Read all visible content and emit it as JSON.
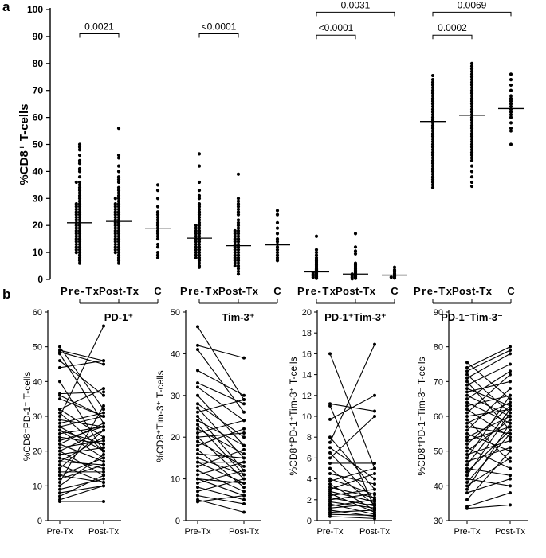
{
  "panel_labels": {
    "a": "a",
    "b": "b"
  },
  "chart_data": [
    {
      "panel": "a",
      "type": "scatter",
      "ylabel": "%CD8⁺ T-cells",
      "ylim": [
        0,
        100
      ],
      "yticks": [
        0,
        10,
        20,
        30,
        40,
        50,
        60,
        70,
        80,
        90,
        100
      ],
      "categories": [
        "Pre-Tx",
        "Post-Tx",
        "C"
      ],
      "groups": [
        {
          "label": "PD-1⁺",
          "series": [
            {
              "name": "Pre-Tx",
              "median": 21,
              "values": [
                50,
                49,
                48,
                46,
                44,
                43,
                41,
                40,
                38,
                36,
                36,
                35,
                34,
                33,
                32,
                31,
                30,
                29,
                28,
                28,
                27,
                27,
                26,
                26,
                25,
                25,
                24,
                24,
                23,
                23,
                22,
                22,
                21,
                21,
                20,
                20,
                19,
                19,
                18,
                18,
                17,
                17,
                16,
                16,
                15,
                15,
                14,
                14,
                13,
                13,
                12,
                12,
                11,
                11,
                10,
                10,
                9,
                8,
                7,
                6
              ]
            },
            {
              "name": "Post-Tx",
              "median": 21.5,
              "values": [
                56,
                46,
                45,
                42,
                40,
                38,
                37,
                36,
                34,
                33,
                32,
                31,
                30,
                30,
                29,
                28,
                28,
                27,
                27,
                26,
                26,
                25,
                25,
                24,
                24,
                23,
                23,
                22,
                22,
                21,
                21,
                20,
                20,
                19,
                19,
                18,
                18,
                17,
                17,
                16,
                16,
                15,
                15,
                14,
                14,
                13,
                13,
                12,
                12,
                11,
                11,
                10,
                10,
                9,
                8,
                7,
                6
              ]
            },
            {
              "name": "C",
              "median": 19,
              "values": [
                35,
                33,
                30,
                27,
                25,
                24,
                23,
                22,
                21,
                20,
                19,
                18,
                17,
                16,
                15,
                13,
                12,
                10,
                9,
                8
              ]
            }
          ],
          "comparison": {
            "label": "0.0021",
            "from": "Pre-Tx",
            "to": "Post-Tx"
          }
        },
        {
          "label": "Tim-3⁺",
          "series": [
            {
              "name": "Pre-Tx",
              "median": 15.3,
              "values": [
                46.5,
                42,
                36,
                33,
                31,
                30,
                28,
                27,
                26,
                25,
                24,
                23,
                22,
                21,
                20,
                20,
                19,
                19,
                18,
                18,
                17,
                17,
                16,
                16,
                15,
                15,
                14,
                14,
                13,
                13,
                12,
                12,
                11,
                11,
                10,
                10,
                9,
                9,
                8,
                8,
                7,
                6,
                5,
                4.5
              ]
            },
            {
              "name": "Post-Tx",
              "median": 12.5,
              "values": [
                39,
                30,
                29,
                28,
                27,
                26,
                25,
                24,
                22,
                21,
                20,
                19,
                18,
                18,
                17,
                17,
                16,
                16,
                15,
                15,
                14,
                14,
                13,
                13,
                12,
                12,
                11,
                11,
                10,
                10,
                9,
                9,
                8,
                8,
                7,
                7,
                6,
                6,
                5,
                5,
                4,
                3,
                2
              ]
            },
            {
              "name": "C",
              "median": 12.8,
              "values": [
                25.5,
                24,
                21,
                19,
                17,
                15,
                14,
                13,
                12,
                11,
                10,
                9,
                8,
                7
              ]
            }
          ],
          "comparison": {
            "label": "<0.0001",
            "from": "Pre-Tx",
            "to": "Post-Tx"
          }
        },
        {
          "label": "PD-1⁺Tim-3⁺",
          "series": [
            {
              "name": "Pre-Tx",
              "median": 2.8,
              "values": [
                16,
                11,
                10,
                9,
                8,
                7.5,
                7,
                6.5,
                6,
                5.5,
                5,
                4.5,
                4,
                3.8,
                3.5,
                3.2,
                3,
                2.8,
                2.6,
                2.4,
                2.2,
                2,
                1.8,
                1.6,
                1.4,
                1.2,
                1,
                0.8,
                0.6,
                0.4
              ]
            },
            {
              "name": "Post-Tx",
              "median": 2,
              "values": [
                17,
                12,
                10.5,
                9.5,
                6,
                5.5,
                5,
                4.5,
                4,
                3.5,
                3,
                2.8,
                2.5,
                2.2,
                2,
                1.8,
                1.6,
                1.4,
                1.2,
                1,
                0.8,
                0.6,
                0.4,
                0.2
              ]
            },
            {
              "name": "C",
              "median": 1.6,
              "values": [
                4.5,
                3.5,
                2.8,
                2.2,
                1.8,
                1.5,
                1.2,
                1,
                0.8,
                0.5
              ]
            }
          ],
          "comparison": {
            "label": "<0.0001",
            "from": "Pre-Tx",
            "to": "Post-Tx"
          },
          "comparison_outer": {
            "label": "0.0031",
            "from": "Pre-Tx",
            "to": "C"
          }
        },
        {
          "label": "PD-1⁻Tim-3⁻",
          "series": [
            {
              "name": "Pre-Tx",
              "median": 58.5,
              "values": [
                75.5,
                74,
                73,
                72,
                71,
                70,
                69,
                68,
                67,
                66,
                65,
                64,
                63,
                62,
                61,
                60,
                59,
                58,
                57,
                56,
                55,
                54,
                53,
                52,
                51,
                50,
                49,
                48,
                47,
                46,
                45,
                44,
                43,
                42,
                41,
                40,
                39,
                38,
                37,
                36,
                35,
                34
              ]
            },
            {
              "name": "Post-Tx",
              "median": 60.8,
              "values": [
                80,
                79,
                78,
                77,
                76,
                75,
                74,
                73,
                72,
                71,
                70,
                69,
                68,
                67,
                66,
                65,
                64,
                63,
                62,
                61,
                60,
                59,
                58,
                57,
                56,
                55,
                54,
                53,
                52,
                51,
                50,
                49,
                48,
                47,
                46,
                45,
                44,
                42,
                40,
                38,
                36,
                34.5
              ]
            },
            {
              "name": "C",
              "median": 63.3,
              "values": [
                76,
                74,
                72,
                70,
                68,
                67,
                66,
                65,
                64,
                63,
                62,
                61,
                60,
                58,
                56,
                55,
                50
              ]
            }
          ],
          "comparison": {
            "label": "0.0002",
            "from": "Pre-Tx",
            "to": "Post-Tx"
          },
          "comparison_outer": {
            "label": "0.0069",
            "from": "Pre-Tx",
            "to": "C"
          }
        }
      ]
    },
    {
      "panel": "b",
      "type": "line",
      "ylabel": "%CD8⁺PD-1⁺ T-cells",
      "categories": [
        "Pre-Tx",
        "Post-Tx"
      ],
      "ylim": [
        0,
        60
      ],
      "yticks": [
        0,
        10,
        20,
        30,
        40,
        50,
        60
      ],
      "pairs": [
        [
          50,
          32
        ],
        [
          49,
          46
        ],
        [
          48.5,
          45
        ],
        [
          48,
          28
        ],
        [
          46,
          36
        ],
        [
          44,
          46
        ],
        [
          40,
          20
        ],
        [
          36.5,
          37
        ],
        [
          36,
          30
        ],
        [
          35,
          30
        ],
        [
          32,
          24
        ],
        [
          31,
          20
        ],
        [
          30,
          56
        ],
        [
          29,
          27
        ],
        [
          28,
          31
        ],
        [
          27,
          30
        ],
        [
          26,
          18
        ],
        [
          25,
          27
        ],
        [
          24,
          22
        ],
        [
          23,
          27
        ],
        [
          22,
          17
        ],
        [
          21,
          23
        ],
        [
          20,
          26
        ],
        [
          20,
          13
        ],
        [
          19,
          21
        ],
        [
          18,
          15
        ],
        [
          17,
          16
        ],
        [
          16,
          11
        ],
        [
          15,
          26
        ],
        [
          14,
          14
        ],
        [
          13,
          18
        ],
        [
          12,
          16
        ],
        [
          11,
          33
        ],
        [
          10,
          19
        ],
        [
          9,
          12
        ],
        [
          8,
          10
        ],
        [
          7,
          13
        ],
        [
          6,
          10
        ],
        [
          5.5,
          5.5
        ],
        [
          27,
          20
        ],
        [
          22,
          28
        ],
        [
          17,
          24
        ],
        [
          13,
          11
        ],
        [
          32,
          38
        ],
        [
          26,
          22
        ]
      ]
    },
    {
      "panel": "b",
      "type": "line",
      "ylabel": "%CD8⁺Tim-3⁺ T-cells",
      "categories": [
        "Pre-Tx",
        "Post-Tx"
      ],
      "ylim": [
        0,
        50
      ],
      "yticks": [
        0,
        10,
        20,
        30,
        40,
        50
      ],
      "pairs": [
        [
          46.5,
          29
        ],
        [
          42,
          39
        ],
        [
          41,
          26
        ],
        [
          36,
          30
        ],
        [
          33,
          28
        ],
        [
          32,
          24
        ],
        [
          30,
          18
        ],
        [
          28,
          20
        ],
        [
          27,
          15
        ],
        [
          26,
          29
        ],
        [
          25,
          12
        ],
        [
          24,
          18
        ],
        [
          23,
          11
        ],
        [
          22,
          16
        ],
        [
          21,
          24
        ],
        [
          20,
          10
        ],
        [
          19,
          13
        ],
        [
          18,
          22
        ],
        [
          17,
          8
        ],
        [
          16,
          15
        ],
        [
          15,
          11
        ],
        [
          14,
          9
        ],
        [
          13,
          17
        ],
        [
          12,
          7
        ],
        [
          11,
          14
        ],
        [
          10,
          6
        ],
        [
          9,
          12
        ],
        [
          8,
          5
        ],
        [
          7,
          10
        ],
        [
          6,
          4
        ],
        [
          5,
          2
        ],
        [
          4.5,
          6
        ],
        [
          20,
          21
        ],
        [
          14,
          14
        ],
        [
          10,
          9
        ]
      ]
    },
    {
      "panel": "b",
      "type": "line",
      "ylabel": "%CD8⁺PD-1⁺Tim-3⁺ T-cells",
      "categories": [
        "Pre-Tx",
        "Post-Tx"
      ],
      "ylim": [
        0,
        20
      ],
      "yticks": [
        0,
        2,
        4,
        6,
        8,
        10,
        12,
        14,
        16,
        18,
        20
      ],
      "pairs": [
        [
          16,
          5
        ],
        [
          11.2,
          10.5
        ],
        [
          11,
          1.2
        ],
        [
          9.7,
          12
        ],
        [
          8,
          3
        ],
        [
          7.5,
          16.9
        ],
        [
          7,
          4
        ],
        [
          6.5,
          2
        ],
        [
          6,
          10
        ],
        [
          5.5,
          5.5
        ],
        [
          5,
          1.5
        ],
        [
          4.5,
          3.5
        ],
        [
          4,
          2.5
        ],
        [
          3.8,
          5
        ],
        [
          3.5,
          1
        ],
        [
          3.2,
          2.2
        ],
        [
          3,
          4.5
        ],
        [
          2.8,
          1.8
        ],
        [
          2.6,
          0.8
        ],
        [
          2.4,
          3
        ],
        [
          2.2,
          1.4
        ],
        [
          2,
          2.6
        ],
        [
          1.8,
          1.2
        ],
        [
          1.6,
          0.6
        ],
        [
          1.4,
          2
        ],
        [
          1.2,
          1.6
        ],
        [
          1,
          0.4
        ],
        [
          0.8,
          1
        ],
        [
          0.6,
          0.5
        ],
        [
          0.4,
          0.2
        ]
      ]
    },
    {
      "panel": "b",
      "type": "line",
      "ylabel": "%CD8⁺PD-1⁻Tim-3⁻ T-cells",
      "categories": [
        "Pre-Tx",
        "Post-Tx"
      ],
      "ylim": [
        30,
        90
      ],
      "yticks": [
        30,
        40,
        50,
        60,
        70,
        80,
        90
      ],
      "pairs": [
        [
          75.5,
          65
        ],
        [
          74,
          80
        ],
        [
          73,
          79
        ],
        [
          72,
          61
        ],
        [
          71,
          78
        ],
        [
          70,
          56
        ],
        [
          69,
          75
        ],
        [
          68,
          63
        ],
        [
          67,
          70
        ],
        [
          66,
          60
        ],
        [
          65,
          73
        ],
        [
          64,
          58
        ],
        [
          63,
          66
        ],
        [
          62,
          54
        ],
        [
          61,
          72
        ],
        [
          60,
          62
        ],
        [
          59,
          47
        ],
        [
          58,
          64
        ],
        [
          57,
          55
        ],
        [
          56,
          68
        ],
        [
          55,
          50
        ],
        [
          54,
          60
        ],
        [
          53,
          57
        ],
        [
          52,
          63
        ],
        [
          51,
          45
        ],
        [
          50,
          59
        ],
        [
          49,
          53
        ],
        [
          48,
          66
        ],
        [
          47,
          51
        ],
        [
          46,
          62
        ],
        [
          45,
          43
        ],
        [
          44,
          56
        ],
        [
          43,
          61
        ],
        [
          42,
          40
        ],
        [
          41,
          55
        ],
        [
          40,
          48
        ],
        [
          39,
          58
        ],
        [
          38,
          42
        ],
        [
          36,
          50
        ],
        [
          34,
          38
        ],
        [
          33.5,
          34.5
        ]
      ]
    }
  ]
}
